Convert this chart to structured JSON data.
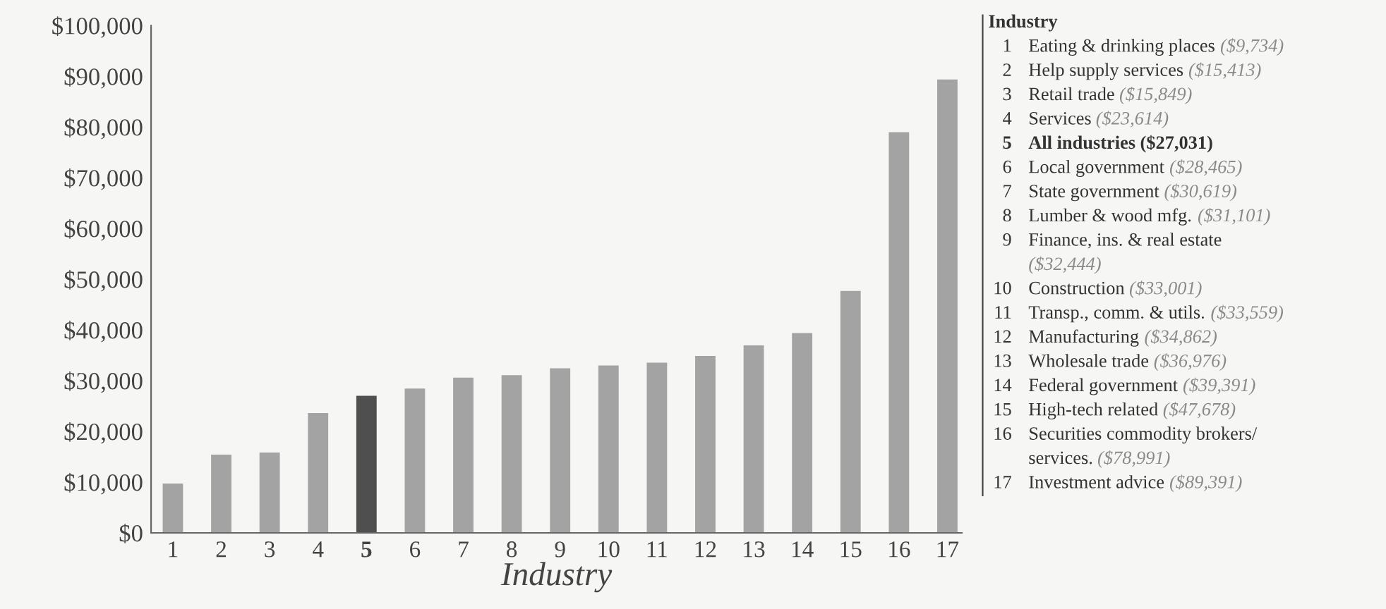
{
  "chart_data": {
    "type": "bar",
    "xlabel": "Industry",
    "legend_title": "Industry",
    "categories": [
      "1",
      "2",
      "3",
      "4",
      "5",
      "6",
      "7",
      "8",
      "9",
      "10",
      "11",
      "12",
      "13",
      "14",
      "15",
      "16",
      "17"
    ],
    "values": [
      9734,
      15413,
      15849,
      23614,
      27031,
      28465,
      30619,
      31101,
      32444,
      33001,
      33559,
      34862,
      36976,
      39391,
      47678,
      78991,
      89391
    ],
    "colors": [
      "#a3a3a3",
      "#a3a3a3",
      "#a3a3a3",
      "#a3a3a3",
      "#4f4f4f",
      "#a3a3a3",
      "#a3a3a3",
      "#a3a3a3",
      "#a3a3a3",
      "#a3a3a3",
      "#a3a3a3",
      "#a3a3a3",
      "#a3a3a3",
      "#a3a3a3",
      "#a3a3a3",
      "#a3a3a3",
      "#a3a3a3"
    ],
    "ylim": [
      0,
      100000
    ],
    "yticks": [
      {
        "value": 0,
        "label": "$0"
      },
      {
        "value": 10000,
        "label": "$10,000"
      },
      {
        "value": 20000,
        "label": "$20,000"
      },
      {
        "value": 30000,
        "label": "$30,000"
      },
      {
        "value": 40000,
        "label": "$40,000"
      },
      {
        "value": 50000,
        "label": "$50,000"
      },
      {
        "value": 60000,
        "label": "$60,000"
      },
      {
        "value": 70000,
        "label": "$70,000"
      },
      {
        "value": 80000,
        "label": "$80,000"
      },
      {
        "value": 90000,
        "label": "$90,000"
      },
      {
        "value": 100000,
        "label": "$100,000"
      }
    ],
    "grid": false,
    "annotations": [
      "Eating & drinking places ($9,734)",
      "Help supply services ($15,413)",
      "Retail trade ($15,849)",
      "Services ($23,614)",
      "All industries ($27,031)",
      "Local government ($28,465)",
      "State government ($30,619)",
      "Lumber & wood mfg. ($31,101)",
      "Finance, ins. & real estate ($32,444)",
      "Construction ($33,001)",
      "Transp., comm. & utils. ($33,559)",
      "Manufacturing ($34,862)",
      "Wholesale trade ($36,976)",
      "Federal government ($39,391)",
      "High-tech related ($47,678)",
      "Securities commodity brokers/ services. ($78,991)",
      "Investment advice ($89,391)"
    ]
  }
}
